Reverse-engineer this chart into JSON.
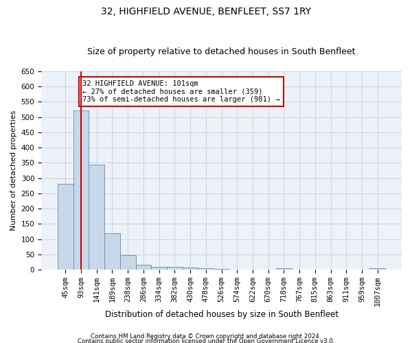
{
  "title": "32, HIGHFIELD AVENUE, BENFLEET, SS7 1RY",
  "subtitle": "Size of property relative to detached houses in South Benfleet",
  "xlabel": "Distribution of detached houses by size in South Benfleet",
  "ylabel": "Number of detached properties",
  "footer1": "Contains HM Land Registry data © Crown copyright and database right 2024.",
  "footer2": "Contains public sector information licensed under the Open Government Licence v3.0.",
  "categories": [
    "45sqm",
    "93sqm",
    "141sqm",
    "189sqm",
    "238sqm",
    "286sqm",
    "334sqm",
    "382sqm",
    "430sqm",
    "478sqm",
    "526sqm",
    "574sqm",
    "622sqm",
    "670sqm",
    "718sqm",
    "767sqm",
    "815sqm",
    "863sqm",
    "911sqm",
    "959sqm",
    "1007sqm"
  ],
  "values": [
    280,
    522,
    345,
    120,
    47,
    15,
    10,
    8,
    6,
    5,
    2,
    0,
    0,
    0,
    5,
    0,
    0,
    0,
    0,
    0,
    5
  ],
  "bar_color": "#c8d8e8",
  "bar_edge_color": "#5b8db8",
  "grid_color": "#ccd5e0",
  "background_color": "#edf1f8",
  "vline_x": 1.0,
  "vline_color": "#cc0000",
  "annotation_text": "32 HIGHFIELD AVENUE: 101sqm\n← 27% of detached houses are smaller (359)\n73% of semi-detached houses are larger (981) →",
  "annotation_box_color": "#cc0000",
  "ylim": [
    0,
    650
  ],
  "yticks": [
    0,
    50,
    100,
    150,
    200,
    250,
    300,
    350,
    400,
    450,
    500,
    550,
    600,
    650
  ],
  "title_fontsize": 10,
  "subtitle_fontsize": 9,
  "xlabel_fontsize": 8.5,
  "ylabel_fontsize": 8,
  "annotation_fontsize": 7.5,
  "tick_fontsize": 7.5
}
